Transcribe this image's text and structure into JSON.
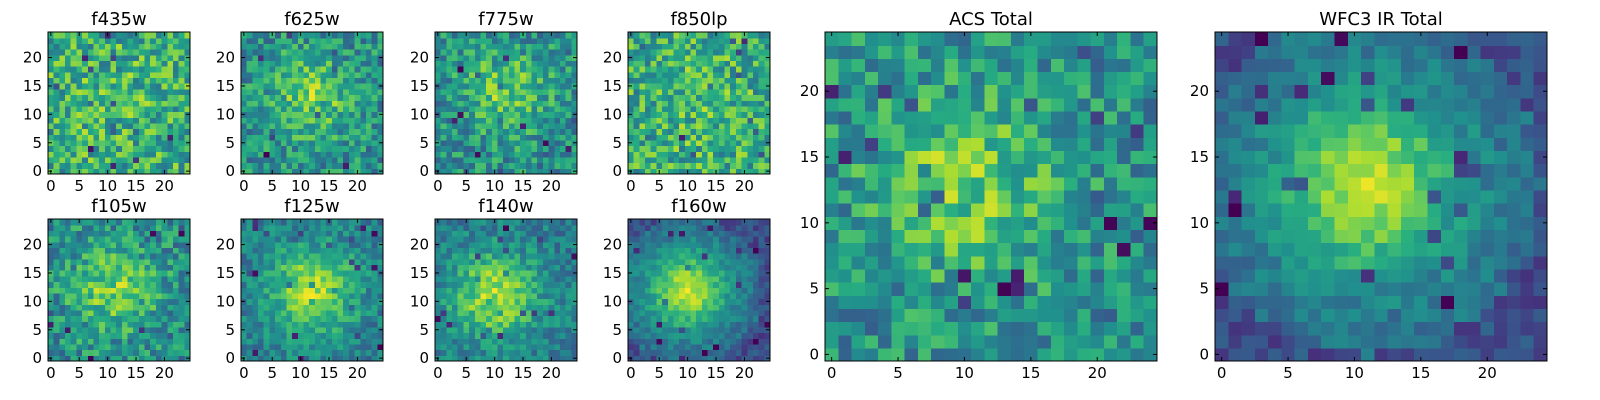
{
  "chart_data": [
    {
      "type": "heatmap",
      "title": "f435w",
      "x_ticks": [
        "0",
        "5",
        "10",
        "15",
        "20"
      ],
      "y_ticks": [
        "0",
        "5",
        "10",
        "15",
        "20"
      ],
      "grid_size": 25,
      "colormap": "viridis",
      "pattern": "noise",
      "peak": [
        12,
        12
      ]
    },
    {
      "type": "heatmap",
      "title": "f625w",
      "x_ticks": [
        "0",
        "5",
        "10",
        "15",
        "20"
      ],
      "y_ticks": [
        "0",
        "5",
        "10",
        "15",
        "20"
      ],
      "grid_size": 25,
      "colormap": "viridis",
      "pattern": "weak-blob",
      "peak": [
        12,
        13
      ]
    },
    {
      "type": "heatmap",
      "title": "f775w",
      "x_ticks": [
        "0",
        "5",
        "10",
        "15",
        "20"
      ],
      "y_ticks": [
        "0",
        "5",
        "10",
        "15",
        "20"
      ],
      "grid_size": 25,
      "colormap": "viridis",
      "pattern": "weak-blob",
      "peak": [
        12,
        14
      ]
    },
    {
      "type": "heatmap",
      "title": "f850lp",
      "x_ticks": [
        "0",
        "5",
        "10",
        "15",
        "20"
      ],
      "y_ticks": [
        "0",
        "5",
        "10",
        "15",
        "20"
      ],
      "grid_size": 25,
      "colormap": "viridis",
      "pattern": "noise",
      "peak": [
        12,
        12
      ]
    },
    {
      "type": "heatmap",
      "title": "f105w",
      "x_ticks": [
        "0",
        "5",
        "10",
        "15",
        "20"
      ],
      "y_ticks": [
        "0",
        "5",
        "10",
        "15",
        "20"
      ],
      "grid_size": 25,
      "colormap": "viridis",
      "pattern": "weak-blob",
      "peak": [
        11,
        12
      ]
    },
    {
      "type": "heatmap",
      "title": "f125w",
      "x_ticks": [
        "0",
        "5",
        "10",
        "15",
        "20"
      ],
      "y_ticks": [
        "0",
        "5",
        "10",
        "15",
        "20"
      ],
      "grid_size": 25,
      "colormap": "viridis",
      "pattern": "blob",
      "peak": [
        12,
        12
      ]
    },
    {
      "type": "heatmap",
      "title": "f140w",
      "x_ticks": [
        "0",
        "5",
        "10",
        "15",
        "20"
      ],
      "y_ticks": [
        "0",
        "5",
        "10",
        "15",
        "20"
      ],
      "grid_size": 25,
      "colormap": "viridis",
      "pattern": "blob",
      "peak": [
        10,
        11
      ]
    },
    {
      "type": "heatmap",
      "title": "f160w",
      "x_ticks": [
        "0",
        "5",
        "10",
        "15",
        "20"
      ],
      "y_ticks": [
        "0",
        "5",
        "10",
        "15",
        "20"
      ],
      "grid_size": 25,
      "colormap": "viridis",
      "pattern": "strong-blob",
      "peak": [
        10,
        12
      ]
    },
    {
      "type": "heatmap",
      "title": "ACS Total",
      "x_ticks": [
        "0",
        "5",
        "10",
        "15",
        "20"
      ],
      "y_ticks": [
        "0",
        "5",
        "10",
        "15",
        "20"
      ],
      "grid_size": 25,
      "colormap": "viridis",
      "pattern": "weak-blob",
      "peak": [
        10,
        13
      ]
    },
    {
      "type": "heatmap",
      "title": "WFC3 IR Total",
      "x_ticks": [
        "0",
        "5",
        "10",
        "15",
        "20"
      ],
      "y_ticks": [
        "0",
        "5",
        "10",
        "15",
        "20"
      ],
      "grid_size": 25,
      "colormap": "viridis",
      "pattern": "strong-blob",
      "peak": [
        11,
        13
      ]
    }
  ],
  "colors": {
    "viridis_low": "#440154",
    "viridis_mid": "#21918c",
    "viridis_high": "#fde725"
  }
}
